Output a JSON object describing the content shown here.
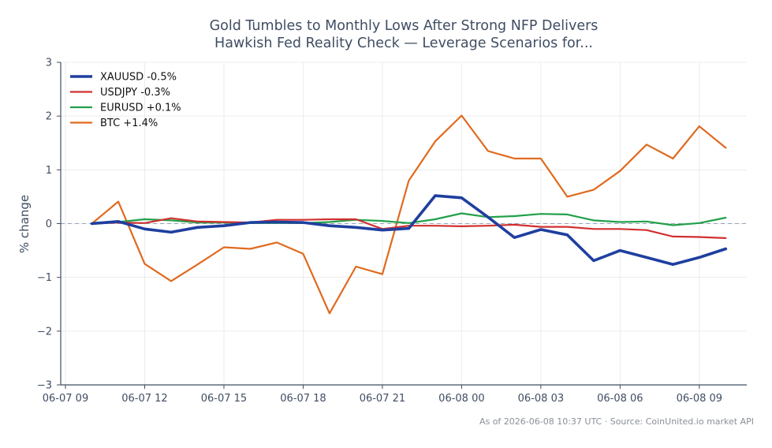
{
  "chart_data": {
    "type": "line",
    "title_lines": [
      "Gold Tumbles to Monthly Lows After Strong NFP Delivers",
      "Hawkish Fed Reality Check — Leverage Scenarios for..."
    ],
    "ylabel": "% change",
    "xlabel": "",
    "ylim": [
      -3,
      3
    ],
    "yticks": [
      -3,
      -2,
      -1,
      0,
      1,
      2,
      3
    ],
    "ytick_labels": [
      "−3",
      "−2",
      "−1",
      "0",
      "1",
      "2",
      "3"
    ],
    "x_start": "2026-06-07 09:00",
    "x_end": "2026-06-08 10:37",
    "xtick_times": [
      "2026-06-07 09:00",
      "2026-06-07 12:00",
      "2026-06-07 15:00",
      "2026-06-07 18:00",
      "2026-06-07 21:00",
      "2026-06-08 00:00",
      "2026-06-08 03:00",
      "2026-06-08 06:00",
      "2026-06-08 09:00"
    ],
    "xtick_labels": [
      "06-07 09",
      "06-07 12",
      "06-07 15",
      "06-07 18",
      "06-07 21",
      "06-08 00",
      "06-08 03",
      "06-08 06",
      "06-08 09"
    ],
    "grid": true,
    "zero_line": true,
    "legend_position": "top-left",
    "x": [
      "2026-06-07 10:00",
      "2026-06-07 11:00",
      "2026-06-07 12:00",
      "2026-06-07 13:00",
      "2026-06-07 14:00",
      "2026-06-07 15:00",
      "2026-06-07 16:00",
      "2026-06-07 17:00",
      "2026-06-07 18:00",
      "2026-06-07 19:00",
      "2026-06-07 20:00",
      "2026-06-07 21:00",
      "2026-06-07 22:00",
      "2026-06-07 23:00",
      "2026-06-08 00:00",
      "2026-06-08 01:00",
      "2026-06-08 02:00",
      "2026-06-08 03:00",
      "2026-06-08 04:00",
      "2026-06-08 05:00",
      "2026-06-08 06:00",
      "2026-06-08 07:00",
      "2026-06-08 08:00",
      "2026-06-08 09:00",
      "2026-06-08 10:00"
    ],
    "series": [
      {
        "name": "XAUUSD -0.5%",
        "color": "#1f3f9f",
        "width": 3.6,
        "values": [
          0.0,
          0.04,
          -0.1,
          -0.16,
          -0.07,
          -0.04,
          0.02,
          0.03,
          0.02,
          -0.04,
          -0.07,
          -0.12,
          -0.09,
          0.52,
          0.48,
          0.12,
          -0.26,
          -0.11,
          -0.21,
          -0.69,
          -0.5,
          -0.63,
          -0.76,
          -0.63,
          -0.47
        ]
      },
      {
        "name": "USDJPY -0.3%",
        "color": "#d03030",
        "width": 2.2,
        "values": [
          0.0,
          0.02,
          0.01,
          0.1,
          0.04,
          0.03,
          0.02,
          0.07,
          0.07,
          0.08,
          0.08,
          -0.1,
          -0.04,
          -0.04,
          -0.05,
          -0.04,
          -0.02,
          -0.06,
          -0.06,
          -0.1,
          -0.1,
          -0.12,
          -0.24,
          -0.25,
          -0.27
        ]
      },
      {
        "name": "EURUSD +0.1%",
        "color": "#22a04a",
        "width": 2.2,
        "values": [
          0.0,
          0.03,
          0.08,
          0.06,
          0.02,
          0.02,
          0.01,
          0.01,
          0.01,
          0.03,
          0.07,
          0.05,
          0.01,
          0.08,
          0.19,
          0.12,
          0.14,
          0.18,
          0.17,
          0.06,
          0.03,
          0.04,
          -0.03,
          0.01,
          0.11
        ]
      },
      {
        "name": "BTC +1.4%",
        "color": "#e06a1e",
        "width": 2.2,
        "values": [
          0.0,
          0.41,
          -0.75,
          -1.07,
          -0.76,
          -0.44,
          -0.47,
          -0.35,
          -0.56,
          -1.67,
          -0.8,
          -0.94,
          0.8,
          1.53,
          2.01,
          1.35,
          1.21,
          1.21,
          0.5,
          0.63,
          0.98,
          1.47,
          1.21,
          1.81,
          1.41
        ]
      }
    ]
  },
  "footer": "As of 2026-06-08 10:37 UTC · Source: CoinUnited.io market API"
}
